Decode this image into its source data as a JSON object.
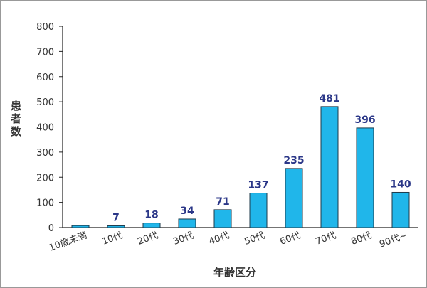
{
  "chart_data": {
    "type": "bar",
    "y_label": "患者数",
    "x_label": "年齢区分",
    "categories": [
      "10歳未満",
      "10代",
      "20代",
      "30代",
      "40代",
      "50代",
      "60代",
      "70代",
      "80代",
      "90代~"
    ],
    "values": [
      8,
      7,
      18,
      34,
      71,
      137,
      235,
      481,
      396,
      140
    ],
    "value_labels": [
      null,
      "7",
      "18",
      "34",
      "71",
      "137",
      "235",
      "481",
      "396",
      "140"
    ],
    "color": "#20b6ea",
    "ylim": [
      0,
      800
    ],
    "yticks": [
      0,
      100,
      200,
      300,
      400,
      500,
      600,
      700,
      800
    ],
    "grid": false
  }
}
